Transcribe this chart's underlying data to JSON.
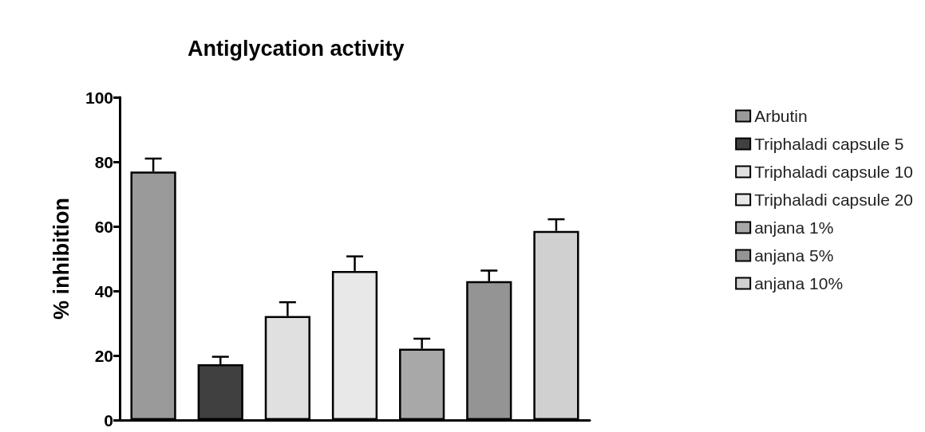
{
  "chart_data": {
    "type": "bar",
    "title": "Antiglycation activity",
    "ylabel": "% inhibition",
    "categories": [
      null,
      null,
      null,
      null,
      null,
      null,
      null
    ],
    "series": [
      {
        "name": "Arbutin",
        "color": "#9a9a9a",
        "values": [
          77,
          null,
          null,
          null,
          null,
          null,
          null
        ],
        "errors": [
          [
            77,
            81
          ],
          null,
          null,
          null,
          null,
          null,
          null
        ]
      },
      {
        "name": "Triphaladi capsule 5",
        "color": "#404040",
        "values": [
          null,
          17.3,
          null,
          null,
          null,
          null,
          null
        ],
        "errors": [
          null,
          [
            17.3,
            19.6
          ],
          null,
          null,
          null,
          null,
          null
        ]
      },
      {
        "name": "Triphaladi capsule 10",
        "color": "#e0e0e0",
        "values": [
          null,
          null,
          32.2,
          null,
          null,
          null,
          null
        ],
        "errors": [
          null,
          null,
          [
            32.2,
            36.5
          ],
          null,
          null,
          null,
          null
        ]
      },
      {
        "name": "Triphaladi capsule 20",
        "color": "#e8e8e8",
        "values": [
          null,
          null,
          null,
          46.2,
          null,
          null,
          null
        ],
        "errors": [
          null,
          null,
          null,
          [
            46.2,
            50.7
          ],
          null,
          null,
          null
        ]
      },
      {
        "name": "anjana 1%",
        "color": "#a8a8a8",
        "values": [
          null,
          null,
          null,
          null,
          22.1,
          null,
          null
        ],
        "errors": [
          null,
          null,
          null,
          null,
          [
            22.1,
            25.2
          ],
          null,
          null
        ]
      },
      {
        "name": "anjana 5%",
        "color": "#949494",
        "values": [
          null,
          null,
          null,
          null,
          null,
          43,
          null
        ],
        "errors": [
          null,
          null,
          null,
          null,
          null,
          [
            43,
            46.3
          ],
          null
        ]
      },
      {
        "name": "anjana 10%",
        "color": "#d0d0d0",
        "values": [
          null,
          null,
          null,
          null,
          null,
          null,
          58.6
        ],
        "errors": [
          null,
          null,
          null,
          null,
          null,
          null,
          [
            58.6,
            62.2
          ]
        ]
      }
    ],
    "ylim": [
      0,
      100
    ],
    "yticks": [
      0,
      20,
      40,
      60,
      80,
      100
    ],
    "grid": false,
    "legend": "right"
  }
}
